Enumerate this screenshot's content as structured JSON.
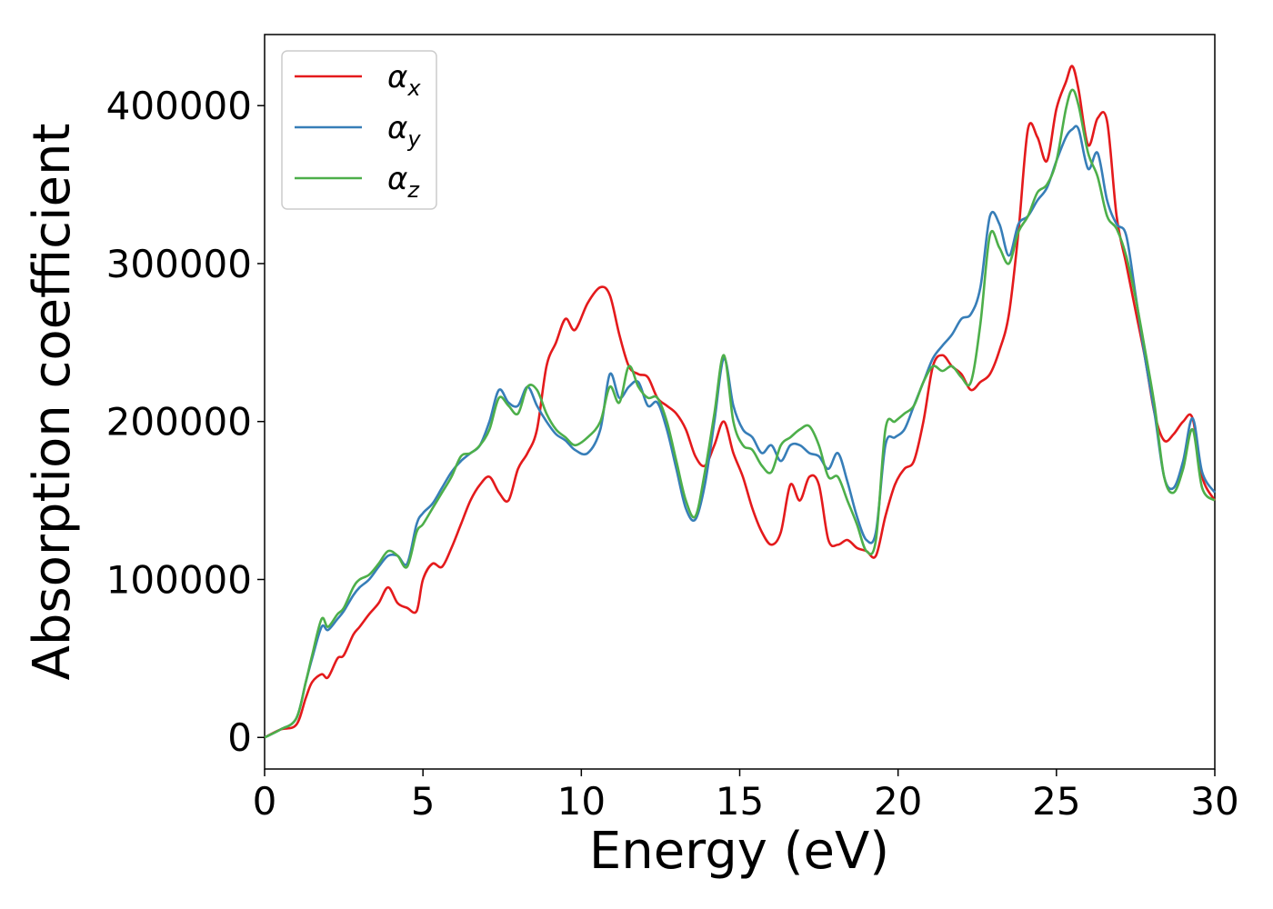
{
  "chart_data": {
    "type": "line",
    "title": "",
    "xlabel": "Energy (eV)",
    "ylabel": "Absorption coefficient",
    "xlim": [
      0,
      30
    ],
    "ylim": [
      -20000,
      445000
    ],
    "xticks": [
      0,
      5,
      10,
      15,
      20,
      25,
      30
    ],
    "yticks": [
      0,
      100000,
      200000,
      300000,
      400000
    ],
    "grid": false,
    "legend_position": "top-left",
    "series": [
      {
        "name": "α",
        "subscript": "x",
        "color": "#e41a1c",
        "x": [
          0,
          0.5,
          1,
          1.3,
          1.5,
          1.8,
          2,
          2.3,
          2.5,
          2.8,
          3,
          3.3,
          3.6,
          3.9,
          4.2,
          4.5,
          4.8,
          5,
          5.3,
          5.6,
          5.9,
          6.2,
          6.5,
          6.8,
          7.1,
          7.4,
          7.7,
          8,
          8.3,
          8.6,
          8.9,
          9.2,
          9.5,
          9.8,
          10.2,
          10.6,
          10.9,
          11.2,
          11.5,
          11.8,
          12.1,
          12.4,
          12.7,
          13,
          13.3,
          13.6,
          13.9,
          14.2,
          14.5,
          14.8,
          15.1,
          15.4,
          15.7,
          16,
          16.3,
          16.6,
          16.9,
          17.2,
          17.5,
          17.8,
          18.1,
          18.4,
          18.7,
          19,
          19.3,
          19.6,
          19.9,
          20.2,
          20.5,
          20.8,
          21.1,
          21.4,
          21.7,
          22,
          22.3,
          22.6,
          22.9,
          23.2,
          23.5,
          23.8,
          24.1,
          24.4,
          24.7,
          25,
          25.3,
          25.5,
          25.7,
          26,
          26.3,
          26.6,
          26.9,
          27.2,
          27.5,
          27.8,
          28.1,
          28.4,
          28.7,
          29,
          29.3,
          29.6,
          30
        ],
        "y": [
          0,
          5000,
          8000,
          25000,
          35000,
          40000,
          38000,
          50000,
          52000,
          65000,
          70000,
          78000,
          85000,
          95000,
          85000,
          82000,
          80000,
          100000,
          110000,
          108000,
          120000,
          135000,
          150000,
          160000,
          165000,
          155000,
          150000,
          170000,
          180000,
          195000,
          235000,
          250000,
          265000,
          258000,
          275000,
          285000,
          280000,
          255000,
          235000,
          230000,
          228000,
          215000,
          210000,
          205000,
          195000,
          178000,
          172000,
          185000,
          200000,
          180000,
          165000,
          145000,
          130000,
          122000,
          130000,
          160000,
          150000,
          165000,
          160000,
          125000,
          122000,
          125000,
          120000,
          118000,
          115000,
          140000,
          160000,
          170000,
          175000,
          200000,
          235000,
          242000,
          235000,
          230000,
          220000,
          225000,
          230000,
          245000,
          268000,
          320000,
          385000,
          380000,
          365000,
          398000,
          415000,
          425000,
          410000,
          375000,
          392000,
          390000,
          330000,
          300000,
          270000,
          240000,
          205000,
          188000,
          192000,
          200000,
          202000,
          165000,
          150000
        ]
      },
      {
        "name": "α",
        "subscript": "y",
        "color": "#377eb8",
        "x": [
          0,
          0.5,
          1,
          1.3,
          1.5,
          1.8,
          2,
          2.3,
          2.5,
          2.8,
          3,
          3.3,
          3.6,
          3.9,
          4.2,
          4.5,
          4.8,
          5,
          5.3,
          5.6,
          5.9,
          6.2,
          6.5,
          6.8,
          7.1,
          7.4,
          7.7,
          8,
          8.3,
          8.6,
          8.9,
          9.2,
          9.5,
          9.8,
          10.2,
          10.6,
          10.9,
          11.2,
          11.5,
          11.8,
          12.1,
          12.4,
          12.7,
          13,
          13.3,
          13.6,
          13.9,
          14.2,
          14.5,
          14.8,
          15.1,
          15.4,
          15.7,
          16,
          16.3,
          16.6,
          16.9,
          17.2,
          17.5,
          17.8,
          18.1,
          18.4,
          18.7,
          19,
          19.3,
          19.6,
          19.9,
          20.2,
          20.5,
          20.8,
          21.1,
          21.4,
          21.7,
          22,
          22.3,
          22.6,
          22.9,
          23.2,
          23.5,
          23.8,
          24.1,
          24.4,
          24.7,
          25,
          25.3,
          25.5,
          25.7,
          26,
          26.3,
          26.6,
          26.9,
          27.2,
          27.5,
          27.8,
          28.1,
          28.4,
          28.7,
          29,
          29.3,
          29.6,
          30
        ],
        "y": [
          0,
          5000,
          12000,
          35000,
          50000,
          70000,
          68000,
          75000,
          80000,
          90000,
          95000,
          100000,
          108000,
          115000,
          115000,
          110000,
          135000,
          142000,
          148000,
          158000,
          168000,
          175000,
          180000,
          185000,
          200000,
          220000,
          212000,
          210000,
          222000,
          210000,
          200000,
          192000,
          188000,
          182000,
          180000,
          195000,
          230000,
          215000,
          222000,
          225000,
          210000,
          212000,
          195000,
          170000,
          145000,
          138000,
          160000,
          200000,
          240000,
          210000,
          195000,
          190000,
          180000,
          185000,
          175000,
          185000,
          185000,
          180000,
          178000,
          170000,
          180000,
          162000,
          140000,
          125000,
          130000,
          185000,
          190000,
          195000,
          210000,
          225000,
          240000,
          248000,
          255000,
          265000,
          268000,
          285000,
          330000,
          325000,
          305000,
          325000,
          330000,
          340000,
          348000,
          365000,
          380000,
          385000,
          385000,
          360000,
          370000,
          340000,
          325000,
          318000,
          280000,
          240000,
          205000,
          165000,
          158000,
          175000,
          202000,
          168000,
          155000
        ]
      },
      {
        "name": "α",
        "subscript": "z",
        "color": "#4daf4a",
        "x": [
          0,
          0.5,
          1,
          1.3,
          1.5,
          1.8,
          2,
          2.3,
          2.5,
          2.8,
          3,
          3.3,
          3.6,
          3.9,
          4.2,
          4.5,
          4.8,
          5,
          5.3,
          5.6,
          5.9,
          6.2,
          6.5,
          6.8,
          7.1,
          7.4,
          7.7,
          8,
          8.3,
          8.6,
          8.9,
          9.2,
          9.5,
          9.8,
          10.2,
          10.6,
          10.9,
          11.2,
          11.5,
          11.8,
          12.1,
          12.4,
          12.7,
          13,
          13.3,
          13.6,
          13.9,
          14.2,
          14.5,
          14.8,
          15.1,
          15.4,
          15.7,
          16,
          16.3,
          16.6,
          16.9,
          17.2,
          17.5,
          17.8,
          18.1,
          18.4,
          18.7,
          19,
          19.3,
          19.6,
          19.9,
          20.2,
          20.5,
          20.8,
          21.1,
          21.4,
          21.7,
          22,
          22.3,
          22.6,
          22.9,
          23.2,
          23.5,
          23.8,
          24.1,
          24.4,
          24.7,
          25,
          25.3,
          25.5,
          25.7,
          26,
          26.3,
          26.6,
          26.9,
          27.2,
          27.5,
          27.8,
          28.1,
          28.4,
          28.7,
          29,
          29.3,
          29.6,
          30
        ],
        "y": [
          0,
          5000,
          12000,
          35000,
          52000,
          75000,
          70000,
          78000,
          82000,
          95000,
          100000,
          103000,
          110000,
          118000,
          115000,
          108000,
          130000,
          135000,
          145000,
          155000,
          165000,
          178000,
          180000,
          185000,
          195000,
          215000,
          210000,
          205000,
          222000,
          220000,
          205000,
          195000,
          190000,
          185000,
          190000,
          200000,
          222000,
          212000,
          235000,
          222000,
          215000,
          215000,
          200000,
          175000,
          150000,
          140000,
          168000,
          205000,
          242000,
          200000,
          185000,
          182000,
          172000,
          168000,
          185000,
          190000,
          195000,
          197000,
          185000,
          165000,
          165000,
          150000,
          135000,
          118000,
          125000,
          195000,
          200000,
          205000,
          210000,
          225000,
          235000,
          232000,
          235000,
          228000,
          225000,
          262000,
          318000,
          310000,
          300000,
          320000,
          330000,
          345000,
          350000,
          365000,
          398000,
          410000,
          400000,
          370000,
          355000,
          330000,
          322000,
          305000,
          278000,
          245000,
          210000,
          165000,
          155000,
          170000,
          195000,
          158000,
          150000
        ]
      }
    ]
  }
}
